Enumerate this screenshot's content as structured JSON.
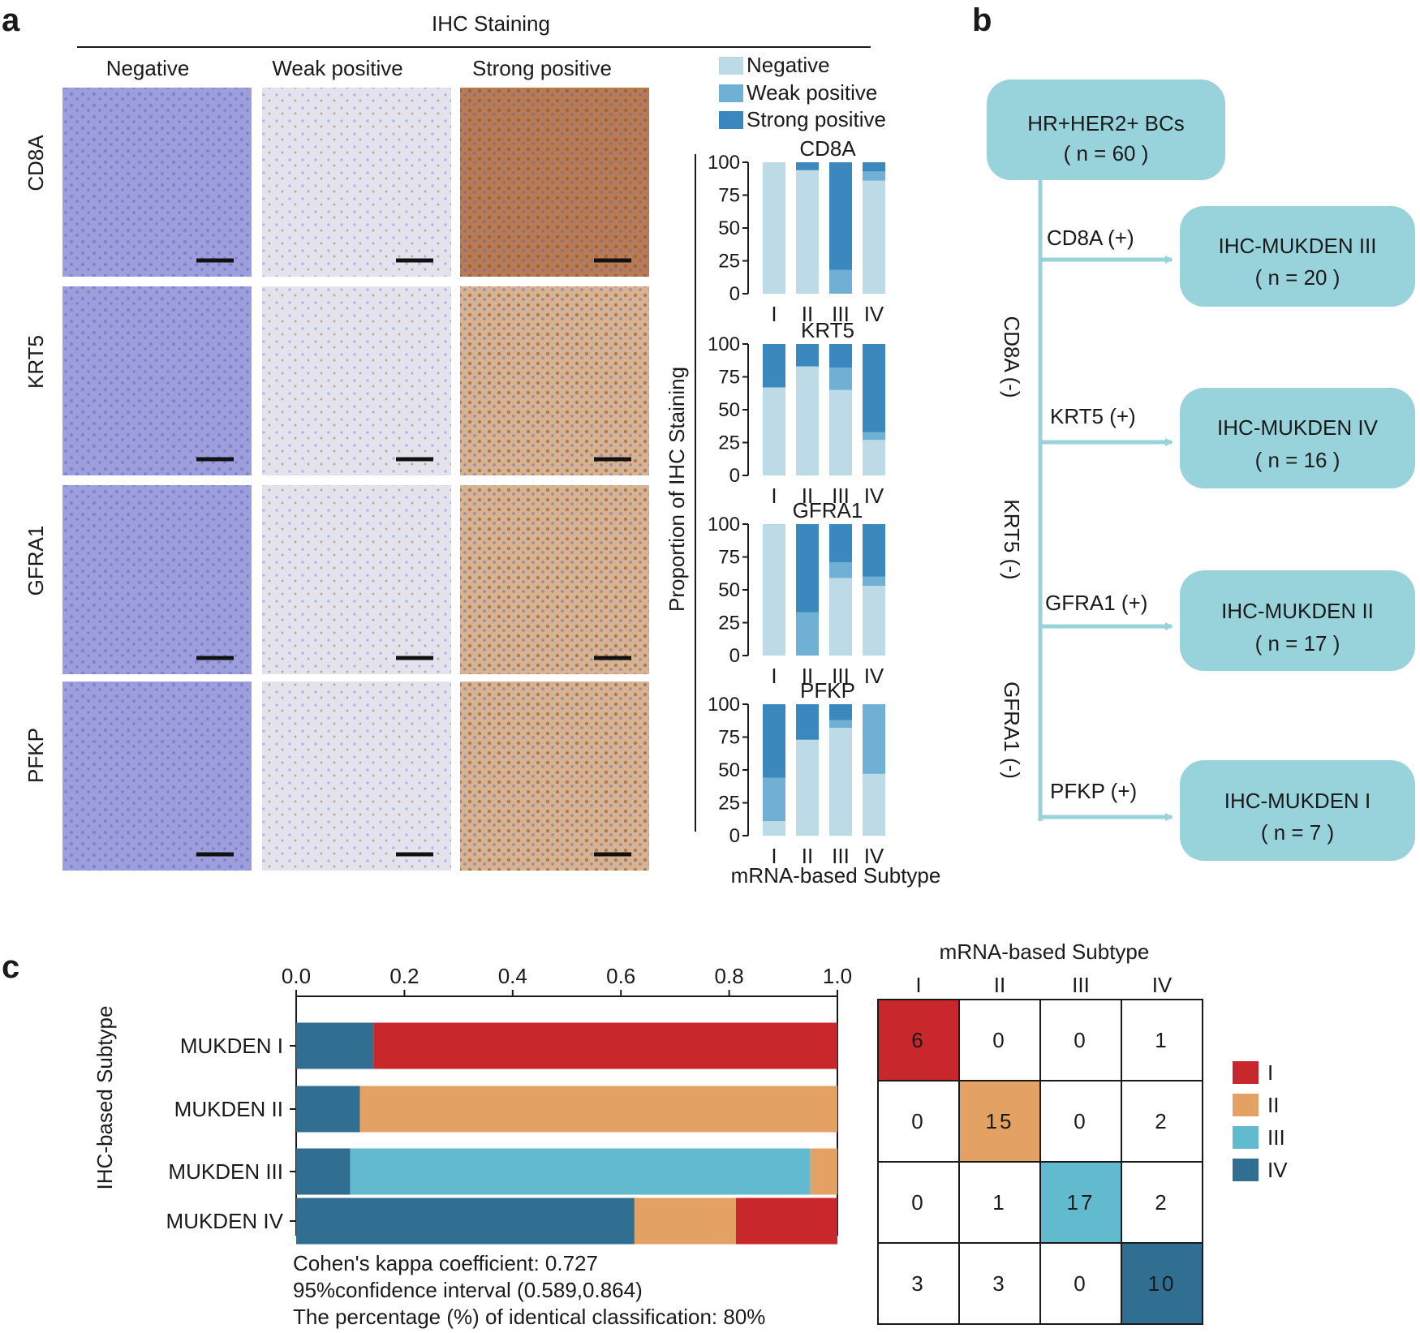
{
  "colors": {
    "negative": "#bcdbe6",
    "weak": "#6fb0d4",
    "strong": "#3a88bd",
    "I": "#c8282b",
    "II": "#e3a263",
    "III": "#62bace",
    "IV": "#306f92",
    "box": "#98d3dc",
    "flow_line": "#98d3dc",
    "stain_blue": "#8d90d6",
    "stain_brown": "#b9865a"
  },
  "panel_a": {
    "letter": "a",
    "header": "IHC Staining",
    "columns": [
      "Negative",
      "Weak positive",
      "Strong positive"
    ],
    "rows": [
      "CD8A",
      "KRT5",
      "GFRA1",
      "PFKP"
    ],
    "micrographs": [
      {
        "row": "CD8A",
        "tiles": [
          {
            "tint": "blue",
            "stain": 0.0
          },
          {
            "tint": "light",
            "stain": 0.35
          },
          {
            "tint": "brown-dense",
            "stain": 0.8
          }
        ]
      },
      {
        "row": "KRT5",
        "tiles": [
          {
            "tint": "blue",
            "stain": 0.0
          },
          {
            "tint": "light",
            "stain": 0.3
          },
          {
            "tint": "brown",
            "stain": 0.7
          }
        ]
      },
      {
        "row": "GFRA1",
        "tiles": [
          {
            "tint": "blue",
            "stain": 0.0
          },
          {
            "tint": "light",
            "stain": 0.3
          },
          {
            "tint": "brown",
            "stain": 0.7
          }
        ]
      },
      {
        "row": "PFKP",
        "tiles": [
          {
            "tint": "blue",
            "stain": 0.0
          },
          {
            "tint": "light",
            "stain": 0.3
          },
          {
            "tint": "brown",
            "stain": 0.5
          }
        ]
      }
    ]
  },
  "chart_data": [
    {
      "type": "bar",
      "stacked": true,
      "panel": "a",
      "ylabel": "Proportion of IHC Staining",
      "xlabel": "mRNA-based Subtype",
      "legend": [
        "Negative",
        "Weak positive",
        "Strong positive"
      ],
      "legend_position": "top",
      "categories": [
        "I",
        "II",
        "III",
        "IV"
      ],
      "yticks": [
        0,
        25,
        50,
        75,
        100
      ],
      "ylim": [
        0,
        100
      ],
      "subplots": [
        {
          "title": "CD8A",
          "series": [
            {
              "name": "Negative",
              "values": [
                100,
                94,
                0,
                86
              ]
            },
            {
              "name": "Weak positive",
              "values": [
                0,
                0,
                18,
                7
              ]
            },
            {
              "name": "Strong positive",
              "values": [
                0,
                6,
                82,
                7
              ]
            }
          ]
        },
        {
          "title": "KRT5",
          "series": [
            {
              "name": "Negative",
              "values": [
                67,
                83,
                65,
                27
              ]
            },
            {
              "name": "Weak positive",
              "values": [
                0,
                0,
                17,
                6
              ]
            },
            {
              "name": "Strong positive",
              "values": [
                33,
                17,
                18,
                67
              ]
            }
          ]
        },
        {
          "title": "GFRA1",
          "series": [
            {
              "name": "Negative",
              "values": [
                100,
                0,
                59,
                53
              ]
            },
            {
              "name": "Weak positive",
              "values": [
                0,
                33,
                12,
                7
              ]
            },
            {
              "name": "Strong positive",
              "values": [
                0,
                67,
                29,
                40
              ]
            }
          ]
        },
        {
          "title": "PFKP",
          "series": [
            {
              "name": "Negative",
              "values": [
                11,
                73,
                82,
                47
              ]
            },
            {
              "name": "Weak positive",
              "values": [
                33,
                0,
                6,
                53
              ]
            },
            {
              "name": "Strong positive",
              "values": [
                56,
                27,
                12,
                0
              ]
            }
          ]
        }
      ]
    },
    {
      "type": "bar",
      "orientation": "horizontal",
      "stacked": true,
      "panel": "c",
      "ylabel": "IHC-based Subtype",
      "categories": [
        "MUKDEN I",
        "MUKDEN II",
        "MUKDEN III",
        "MUKDEN IV"
      ],
      "xticks": [
        "0.0",
        "0.2",
        "0.4",
        "0.6",
        "0.8",
        "1.0"
      ],
      "xlim": [
        0,
        1
      ],
      "series": [
        {
          "name": "I",
          "values": [
            0.857,
            0.0,
            0.0,
            0.1875
          ]
        },
        {
          "name": "II",
          "values": [
            0.0,
            0.882,
            0.05,
            0.1875
          ]
        },
        {
          "name": "III",
          "values": [
            0.0,
            0.0,
            0.85,
            0.0
          ]
        },
        {
          "name": "IV",
          "values": [
            0.143,
            0.118,
            0.1,
            0.625
          ]
        }
      ],
      "stack_order": [
        "IV",
        "III",
        "II",
        "I"
      ],
      "notes": [
        "Cohen's kappa coefficient: 0.727",
        "95%confidence interval (0.589,0.864)",
        "The percentage (%) of identical classification: 80%"
      ]
    },
    {
      "type": "heatmap",
      "panel": "c",
      "title": "mRNA-based Subtype",
      "columns": [
        "I",
        "II",
        "III",
        "IV"
      ],
      "rows": [
        "I",
        "II",
        "III",
        "IV"
      ],
      "values": [
        [
          6,
          0,
          0,
          1
        ],
        [
          0,
          15,
          0,
          2
        ],
        [
          0,
          1,
          17,
          2
        ],
        [
          3,
          3,
          0,
          10
        ]
      ],
      "legend": [
        "I",
        "II",
        "III",
        "IV"
      ],
      "legend_position": "right"
    }
  ],
  "panel_b": {
    "letter": "b",
    "root": {
      "title": "HR+HER2+ BCs",
      "n": "( n = 60 )"
    },
    "branches": [
      {
        "marker": "CD8A (+)",
        "result": "IHC-MUKDEN III",
        "n": "( n = 20 )"
      },
      {
        "marker": "KRT5 (+)",
        "result": "IHC-MUKDEN IV",
        "n": "( n = 16 )"
      },
      {
        "marker": "GFRA1 (+)",
        "result": "IHC-MUKDEN II",
        "n": "( n = 17 )"
      },
      {
        "marker": "PFKP (+)",
        "result": "IHC-MUKDEN I",
        "n": "( n = 7 )"
      }
    ],
    "negatives": [
      "CD8A (-)",
      "KRT5 (-)",
      "GFRA1 (-)"
    ]
  },
  "panel_c": {
    "letter": "c"
  }
}
